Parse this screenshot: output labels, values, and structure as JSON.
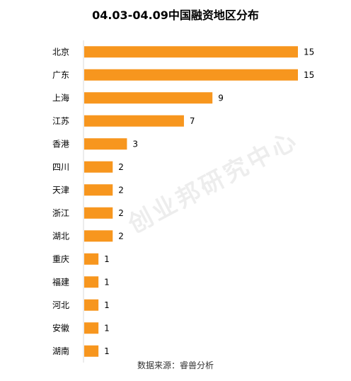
{
  "title": "04.03-04.09中国融资地区分布",
  "source": "数据来源：睿兽分析",
  "watermark": "创业邦研究中心",
  "colors": {
    "bar": "#F7961E",
    "axis": "#d9d9d9"
  },
  "chart_data": {
    "type": "bar",
    "orientation": "horizontal",
    "title": "04.03-04.09中国融资地区分布",
    "categories": [
      "北京",
      "广东",
      "上海",
      "江苏",
      "香港",
      "四川",
      "天津",
      "浙江",
      "湖北",
      "重庆",
      "福建",
      "河北",
      "安徽",
      "湖南"
    ],
    "values": [
      15,
      15,
      9,
      7,
      3,
      2,
      2,
      2,
      2,
      1,
      1,
      1,
      1,
      1
    ],
    "xlim": [
      0,
      15
    ],
    "grid": false,
    "data_labels": true
  }
}
